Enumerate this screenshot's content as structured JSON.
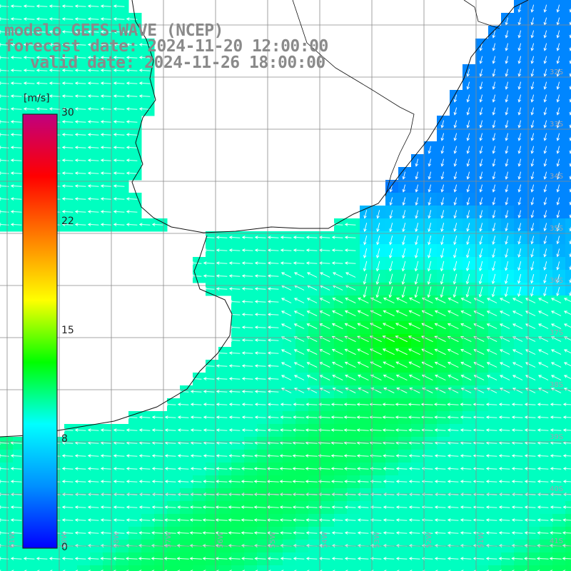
{
  "title": {
    "line1": "modelo GEFS-WAVE (NCEP)",
    "line2": "forecast date: 2024-11-20 12:00:00",
    "line3": "valid date: 2024-11-26 18:00:00"
  },
  "colorbar": {
    "unit": "[m/s]",
    "min": 0,
    "max": 30,
    "ticks": [
      "30",
      "22",
      "15",
      "8",
      "0"
    ],
    "tick_values": [
      30,
      22,
      15,
      8,
      0
    ],
    "colors": [
      "#0000ff",
      "#0090ff",
      "#00ffff",
      "#00ff00",
      "#ffff00",
      "#ff8000",
      "#ff0000",
      "#c0007f"
    ]
  },
  "grid": {
    "lon_labels": [
      "61W",
      "59W",
      "58W",
      "57W",
      "56W",
      "55W",
      "54W",
      "53W",
      "52W",
      "51W"
    ],
    "lat_labels": [
      "32S",
      "33S",
      "34S",
      "35S",
      "36S",
      "37S",
      "38S",
      "39S",
      "40S",
      "41S"
    ]
  },
  "chart_data": {
    "type": "heatmap",
    "variable": "wind speed with direction arrows",
    "unit": "m/s",
    "colorscale_range": [
      0,
      30
    ],
    "regions": [
      {
        "area": "northeast coastal (off Brazil)",
        "speed_ms": 4,
        "direction": "from north"
      },
      {
        "area": "central offshore",
        "speed_ms": 12,
        "direction": "from southeast"
      },
      {
        "area": "coastal plate/Argentina shelf",
        "speed_ms": 8,
        "direction": "from east"
      },
      {
        "area": "southwest",
        "speed_ms": 8,
        "direction": "from east"
      }
    ]
  }
}
